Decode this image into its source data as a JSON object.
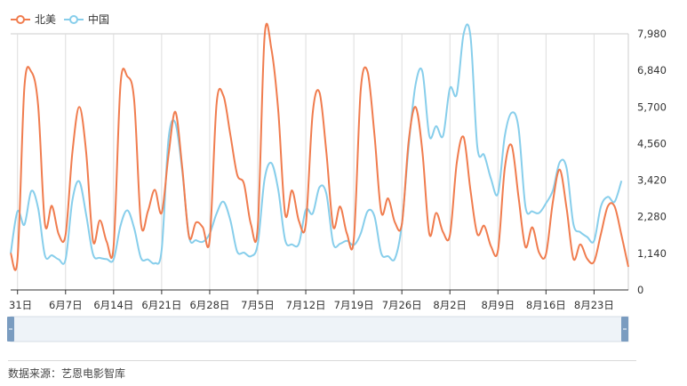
{
  "chart_data": {
    "type": "line",
    "title": "",
    "xlabel": "",
    "ylabel": "",
    "ylim": [
      0,
      7980
    ],
    "yticks": [
      0,
      1140,
      2280,
      3420,
      4560,
      5700,
      6840,
      7980
    ],
    "ytick_labels": [
      "0",
      "1,140",
      "2,280",
      "3,420",
      "4,560",
      "5,700",
      "6,840",
      "7,980"
    ],
    "xtick_labels": [
      "31日",
      "6月7日",
      "6月14日",
      "6月21日",
      "6月28日",
      "7月5日",
      "7月12日",
      "7月19日",
      "7月26日",
      "8月2日",
      "8月9日",
      "8月16日",
      "8月23日"
    ],
    "grid": true,
    "legend": "top-left",
    "series": [
      {
        "name": "北美",
        "color": "#f07c4e",
        "values": [
          1150,
          960,
          6300,
          6800,
          5750,
          2050,
          2620,
          1730,
          1720,
          4300,
          5700,
          4300,
          1520,
          2170,
          1500,
          1350,
          6400,
          6650,
          5900,
          2050,
          2450,
          3120,
          2400,
          4200,
          5550,
          3800,
          1650,
          2100,
          1950,
          1550,
          5800,
          6050,
          4850,
          3600,
          3300,
          2050,
          1950,
          7900,
          7500,
          5550,
          2350,
          3100,
          2150,
          2050,
          5500,
          6150,
          4300,
          1970,
          2600,
          1750,
          1580,
          6200,
          6800,
          4850,
          2420,
          2850,
          2100,
          2050,
          4650,
          5700,
          4300,
          1740,
          2400,
          1800,
          1700,
          3950,
          4760,
          3100,
          1740,
          2000,
          1350,
          1230,
          3800,
          4500,
          2900,
          1340,
          1950,
          1160,
          1110,
          2750,
          3750,
          2550,
          970,
          1420,
          970,
          880,
          1740,
          2600,
          2600,
          1700,
          720
        ]
      },
      {
        "name": "中国",
        "color": "#87ceeb",
        "values": [
          1130,
          2450,
          2030,
          3080,
          2550,
          1070,
          1080,
          950,
          950,
          2800,
          3380,
          2350,
          1110,
          1000,
          960,
          950,
          2000,
          2480,
          1920,
          990,
          950,
          830,
          1250,
          4700,
          5200,
          3700,
          1650,
          1550,
          1500,
          1750,
          2380,
          2750,
          2180,
          1200,
          1160,
          1050,
          1430,
          3450,
          3950,
          3100,
          1550,
          1420,
          1440,
          2500,
          2380,
          3200,
          3000,
          1450,
          1440,
          1530,
          1400,
          1750,
          2450,
          2300,
          1140,
          1050,
          980,
          2050,
          4500,
          6400,
          6800,
          4800,
          5100,
          4800,
          6280,
          6100,
          7980,
          7900,
          4450,
          4200,
          3450,
          3000,
          4800,
          5520,
          5050,
          2600,
          2450,
          2400,
          2700,
          3100,
          3980,
          3800,
          2050,
          1800,
          1650,
          1530,
          2600,
          2900,
          2750,
          3400
        ]
      }
    ]
  },
  "footer": {
    "source": "数据来源：艺恩电影智库"
  }
}
